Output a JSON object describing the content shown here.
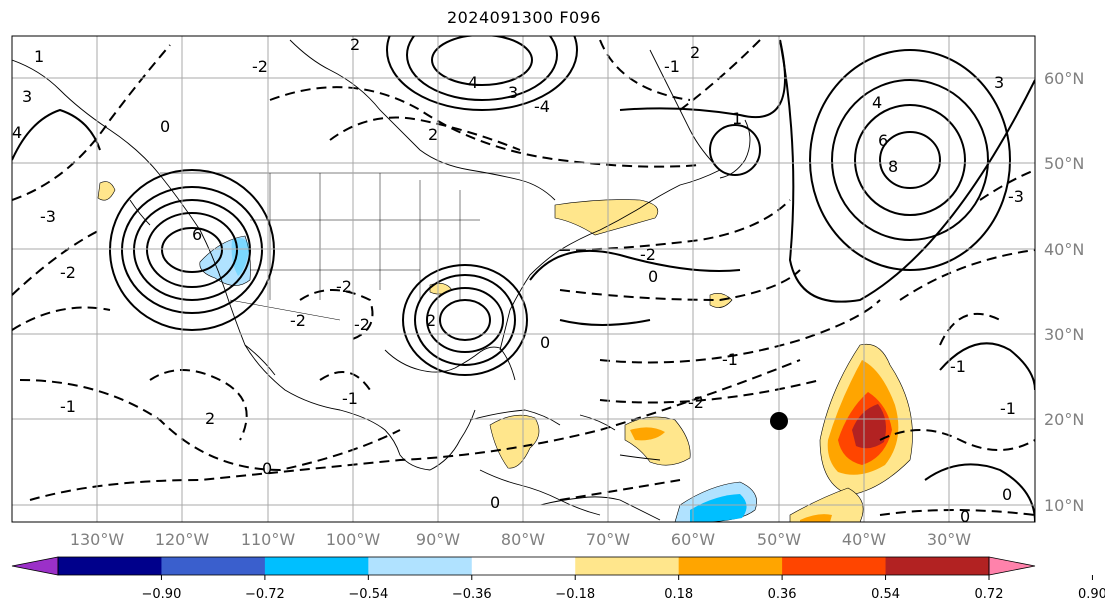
{
  "title": "2024091300 F096",
  "lat_labels": [
    "60°N",
    "50°N",
    "40°N",
    "30°N",
    "20°N",
    "10°N"
  ],
  "lon_labels": [
    "130°W",
    "120°W",
    "110°W",
    "100°W",
    "90°W",
    "80°W",
    "70°W",
    "60°W",
    "50°W",
    "40°W",
    "30°W"
  ],
  "colorbar": {
    "ticks": [
      "−0.90",
      "−0.72",
      "−0.54",
      "−0.36",
      "−0.18",
      "0.18",
      "0.36",
      "0.54",
      "0.72",
      "0.90"
    ],
    "colors": [
      "#9b30c8",
      "#00008b",
      "#3a5fcd",
      "#00bfff",
      "#b0e2ff",
      "#ffffff",
      "#ffe68c",
      "#ffa500",
      "#ff4500",
      "#b22222",
      "#ff82ab"
    ]
  },
  "contour_labels": [
    "6",
    "4",
    "3",
    "2",
    "2",
    "1",
    "0",
    "-1",
    "-2",
    "-2",
    "-2",
    "2",
    "1",
    "0",
    "-1",
    "6",
    "8",
    "4",
    "3",
    "-3",
    "0",
    "0",
    "-1",
    "-1",
    "0",
    "-1",
    "2",
    "-2",
    "0",
    "-3",
    "-2",
    "-1",
    "-2",
    "2",
    "4",
    "3",
    "-4",
    "0",
    "-2"
  ],
  "marker": {
    "label": "storm-center-marker",
    "lat": 20,
    "lon": -50
  }
}
